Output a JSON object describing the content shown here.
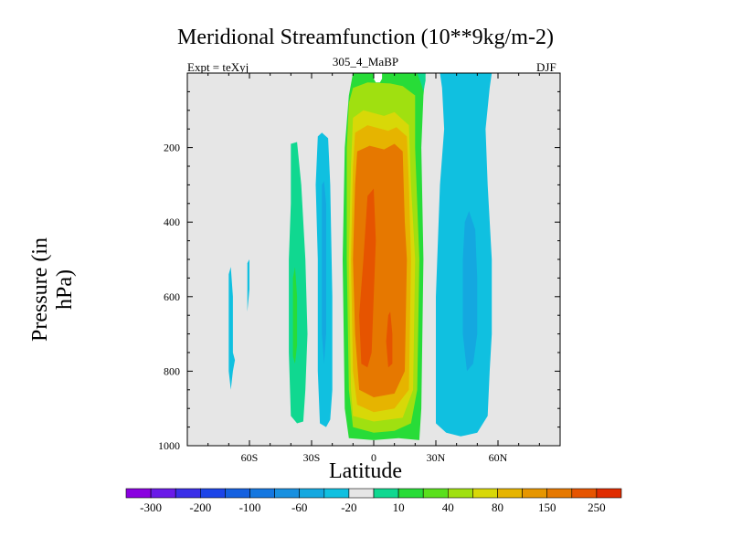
{
  "title": "Meridional Streamfunction (10**9kg/m-2)",
  "subtitle_left": "Expt = teXyj",
  "subtitle_center": "305_4_MaBP",
  "subtitle_right": "DJF",
  "chart_data": {
    "type": "heatmap",
    "title": "Meridional Streamfunction (10**9kg/m-2)",
    "xlabel": "Latitude",
    "ylabel": "Pressure (in hPa)",
    "xlim": [
      -90,
      90
    ],
    "ylim": [
      1000,
      0
    ],
    "x_ticks": [
      {
        "value": -60,
        "label": "60S"
      },
      {
        "value": -30,
        "label": "30S"
      },
      {
        "value": 0,
        "label": "0"
      },
      {
        "value": 30,
        "label": "30N"
      },
      {
        "value": 60,
        "label": "60N"
      }
    ],
    "y_ticks": [
      {
        "value": 200,
        "label": "200"
      },
      {
        "value": 400,
        "label": "400"
      },
      {
        "value": 600,
        "label": "600"
      },
      {
        "value": 800,
        "label": "800"
      },
      {
        "value": 1000,
        "label": "1000"
      }
    ],
    "background_color": "#e6e6e6",
    "levels": [
      -300,
      -200,
      -100,
      -60,
      -20,
      10,
      40,
      80,
      150,
      250
    ],
    "colorbar": {
      "colors": [
        "#8a00e0",
        "#6a1ae8",
        "#3a2ee8",
        "#1c44e8",
        "#1460e0",
        "#1477e0",
        "#1890e0",
        "#14a8e0",
        "#10c0e0",
        "#e6e6e6",
        "#10d890",
        "#28dc38",
        "#5ae01c",
        "#a0e010",
        "#d8d808",
        "#e6b400",
        "#e69600",
        "#e67800",
        "#e65400",
        "#e02c00"
      ],
      "labels": [
        {
          "label": "-300",
          "index": 1
        },
        {
          "label": "-200",
          "index": 3
        },
        {
          "label": "-100",
          "index": 5
        },
        {
          "label": "-60",
          "index": 7
        },
        {
          "label": "-20",
          "index": 9
        },
        {
          "label": "10",
          "index": 11
        },
        {
          "label": "40",
          "index": 13
        },
        {
          "label": "80",
          "index": 15
        },
        {
          "label": "150",
          "index": 17
        },
        {
          "label": "250",
          "index": 19
        }
      ]
    },
    "regions": [
      {
        "name": "green-cell",
        "color": "#28dc38",
        "points": [
          [
            -10,
            0
          ],
          [
            25,
            0
          ],
          [
            24,
            60
          ],
          [
            23,
            200
          ],
          [
            24,
            500
          ],
          [
            23,
            900
          ],
          [
            22,
            985
          ],
          [
            12,
            980
          ],
          [
            0,
            985
          ],
          [
            -12,
            980
          ],
          [
            -14,
            900
          ],
          [
            -15,
            500
          ],
          [
            -14,
            200
          ],
          [
            -12,
            60
          ]
        ]
      },
      {
        "name": "yellowgreen-cell",
        "color": "#a0e010",
        "points": [
          [
            -10,
            40
          ],
          [
            -3,
            25
          ],
          [
            8,
            28
          ],
          [
            14,
            35
          ],
          [
            20,
            60
          ],
          [
            20,
            200
          ],
          [
            22,
            500
          ],
          [
            21,
            850
          ],
          [
            18,
            940
          ],
          [
            10,
            960
          ],
          [
            0,
            965
          ],
          [
            -10,
            950
          ],
          [
            -12,
            850
          ],
          [
            -13,
            500
          ],
          [
            -13,
            200
          ],
          [
            -12,
            80
          ]
        ]
      },
      {
        "name": "yellow-cell",
        "color": "#d8d808",
        "points": [
          [
            -10,
            120
          ],
          [
            -5,
            100
          ],
          [
            5,
            115
          ],
          [
            10,
            105
          ],
          [
            17,
            140
          ],
          [
            18,
            300
          ],
          [
            20,
            500
          ],
          [
            19,
            850
          ],
          [
            14,
            925
          ],
          [
            0,
            935
          ],
          [
            -10,
            920
          ],
          [
            -11,
            850
          ],
          [
            -12,
            500
          ],
          [
            -11,
            250
          ]
        ]
      },
      {
        "name": "lightorange-cell",
        "color": "#e6b400",
        "points": [
          [
            -9,
            160
          ],
          [
            -3,
            140
          ],
          [
            7,
            155
          ],
          [
            11,
            145
          ],
          [
            16,
            170
          ],
          [
            17,
            300
          ],
          [
            18,
            500
          ],
          [
            17,
            850
          ],
          [
            10,
            900
          ],
          [
            0,
            910
          ],
          [
            -8,
            890
          ],
          [
            -10,
            800
          ],
          [
            -11,
            500
          ],
          [
            -10,
            250
          ]
        ]
      },
      {
        "name": "orange-cell",
        "color": "#e67800",
        "points": [
          [
            -8,
            210
          ],
          [
            -2,
            195
          ],
          [
            5,
            205
          ],
          [
            10,
            190
          ],
          [
            14,
            210
          ],
          [
            15,
            400
          ],
          [
            16,
            500
          ],
          [
            15,
            800
          ],
          [
            10,
            860
          ],
          [
            0,
            870
          ],
          [
            -7,
            850
          ],
          [
            -9,
            700
          ],
          [
            -10,
            500
          ],
          [
            -9,
            300
          ]
        ]
      },
      {
        "name": "redorange-cell-west",
        "color": "#e65400",
        "points": [
          [
            -5,
            500
          ],
          [
            -3,
            330
          ],
          [
            0,
            310
          ],
          [
            1,
            450
          ],
          [
            0,
            600
          ],
          [
            -1,
            750
          ],
          [
            -3,
            790
          ],
          [
            -6,
            780
          ],
          [
            -7,
            650
          ]
        ]
      },
      {
        "name": "redorange-cell-east",
        "color": "#e65400",
        "points": [
          [
            7,
            650
          ],
          [
            8,
            640
          ],
          [
            9,
            700
          ],
          [
            9,
            780
          ],
          [
            7,
            790
          ],
          [
            6,
            720
          ]
        ]
      },
      {
        "name": "white-core",
        "color": "#ffffff",
        "points": [
          [
            0,
            0
          ],
          [
            4,
            0
          ],
          [
            4,
            15
          ],
          [
            3,
            25
          ],
          [
            1,
            25
          ],
          [
            0,
            15
          ]
        ]
      },
      {
        "name": "teal-band-north",
        "color": "#10d890",
        "points": [
          [
            21,
            0
          ],
          [
            25,
            0
          ],
          [
            25,
            20
          ],
          [
            24,
            50
          ],
          [
            23,
            30
          ]
        ]
      },
      {
        "name": "blue-outer-north",
        "color": "#10c0e0",
        "points": [
          [
            32,
            0
          ],
          [
            57,
            0
          ],
          [
            56,
            40
          ],
          [
            54,
            150
          ],
          [
            55,
            300
          ],
          [
            57,
            500
          ],
          [
            57,
            700
          ],
          [
            56,
            800
          ],
          [
            55,
            920
          ],
          [
            50,
            965
          ],
          [
            42,
            975
          ],
          [
            35,
            965
          ],
          [
            30,
            940
          ],
          [
            30,
            600
          ],
          [
            32,
            300
          ],
          [
            34,
            150
          ],
          [
            33,
            40
          ]
        ]
      },
      {
        "name": "blue-inner-north",
        "color": "#14a8e0",
        "points": [
          [
            43,
            500
          ],
          [
            44,
            400
          ],
          [
            46,
            370
          ],
          [
            49,
            420
          ],
          [
            50,
            550
          ],
          [
            50,
            700
          ],
          [
            48,
            780
          ],
          [
            45,
            800
          ],
          [
            43,
            700
          ]
        ]
      },
      {
        "name": "teal-streak-south",
        "color": "#10d890",
        "points": [
          [
            -40,
            190
          ],
          [
            -37,
            185
          ],
          [
            -35,
            300
          ],
          [
            -33,
            500
          ],
          [
            -32,
            700
          ],
          [
            -33,
            850
          ],
          [
            -34,
            935
          ],
          [
            -37,
            940
          ],
          [
            -40,
            920
          ],
          [
            -41,
            750
          ],
          [
            -41,
            500
          ],
          [
            -40,
            350
          ]
        ]
      },
      {
        "name": "green-core-south",
        "color": "#28dc38",
        "points": [
          [
            -39,
            550
          ],
          [
            -38,
            520
          ],
          [
            -37,
            600
          ],
          [
            -37,
            730
          ],
          [
            -38,
            780
          ],
          [
            -39,
            760
          ],
          [
            -39,
            650
          ]
        ]
      },
      {
        "name": "blue-streak-south",
        "color": "#10c0e0",
        "points": [
          [
            -27,
            170
          ],
          [
            -25,
            160
          ],
          [
            -22,
            175
          ],
          [
            -21,
            300
          ],
          [
            -20,
            600
          ],
          [
            -20,
            850
          ],
          [
            -21,
            930
          ],
          [
            -23,
            950
          ],
          [
            -26,
            940
          ],
          [
            -27,
            800
          ],
          [
            -27,
            500
          ],
          [
            -28,
            300
          ]
        ]
      },
      {
        "name": "blue-core-south",
        "color": "#14a8e0",
        "points": [
          [
            -25,
            300
          ],
          [
            -24,
            290
          ],
          [
            -23,
            350
          ],
          [
            -23,
            700
          ],
          [
            -24,
            780
          ],
          [
            -25,
            700
          ]
        ]
      },
      {
        "name": "blue-sliver-west",
        "color": "#10c0e0",
        "points": [
          [
            -70,
            540
          ],
          [
            -69,
            520
          ],
          [
            -68,
            600
          ],
          [
            -68,
            750
          ],
          [
            -67,
            770
          ],
          [
            -68,
            800
          ],
          [
            -69,
            850
          ],
          [
            -70,
            800
          ]
        ]
      },
      {
        "name": "blue-sliver-mid",
        "color": "#10c0e0",
        "points": [
          [
            -61,
            510
          ],
          [
            -60,
            500
          ],
          [
            -60,
            580
          ],
          [
            -61,
            640
          ]
        ]
      }
    ]
  }
}
